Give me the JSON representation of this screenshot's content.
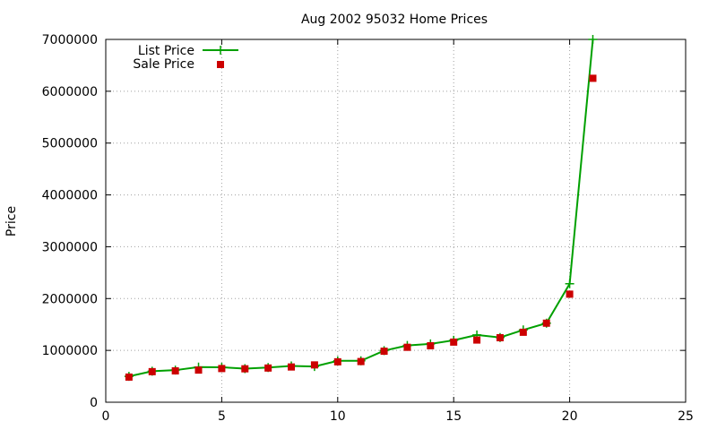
{
  "chart_data": {
    "type": "line",
    "title": "Aug 2002 95032 Home Prices",
    "xlabel": "",
    "ylabel": "Price",
    "xlim": [
      0,
      25
    ],
    "ylim": [
      0,
      7000000
    ],
    "x_ticks": [
      0,
      5,
      10,
      15,
      20,
      25
    ],
    "y_ticks": [
      0,
      1000000,
      2000000,
      3000000,
      4000000,
      5000000,
      6000000,
      7000000
    ],
    "grid": true,
    "legend_position": "top-left",
    "series": [
      {
        "name": "List Price",
        "style": "line-with-plus-markers",
        "color": "#00a000",
        "x": [
          1,
          2,
          3,
          4,
          5,
          6,
          7,
          8,
          9,
          10,
          11,
          12,
          13,
          14,
          15,
          16,
          17,
          18,
          19,
          20,
          21
        ],
        "values": [
          499000,
          599000,
          619000,
          679000,
          675000,
          649000,
          669000,
          699000,
          689000,
          799000,
          799000,
          995000,
          1095000,
          1125000,
          1195000,
          1299000,
          1249000,
          1395000,
          1525000,
          2285000,
          7000000
        ]
      },
      {
        "name": "Sale Price",
        "style": "square-markers",
        "color": "#cc0000",
        "x": [
          1,
          2,
          3,
          4,
          5,
          6,
          7,
          8,
          9,
          10,
          11,
          12,
          13,
          14,
          15,
          16,
          17,
          18,
          19,
          20,
          21
        ],
        "values": [
          485000,
          590000,
          605000,
          620000,
          650000,
          645000,
          660000,
          680000,
          720000,
          780000,
          785000,
          985000,
          1060000,
          1090000,
          1160000,
          1200000,
          1245000,
          1350000,
          1525000,
          2085000,
          6250000
        ]
      }
    ]
  }
}
